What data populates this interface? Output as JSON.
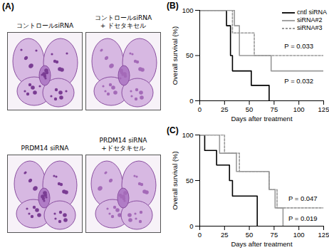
{
  "panel_a": {
    "label": "(A)",
    "images": [
      {
        "caption": [
          "コントロールsiRNA"
        ]
      },
      {
        "caption": [
          "コントロールsiRNA",
          "+ ドセタキセル"
        ]
      },
      {
        "caption": [
          "PRDM14 siRNA"
        ]
      },
      {
        "caption": [
          "PRDM14 siRNA",
          "+ドセタキセル"
        ]
      }
    ]
  },
  "chart_data": [
    {
      "type": "line",
      "panel": "(B)",
      "x_label": "Days after treatment",
      "y_label": "Overall survival (%)",
      "xlim": [
        0,
        125
      ],
      "ylim": [
        0,
        100
      ],
      "xticks": [
        0,
        25,
        50,
        75,
        100,
        125
      ],
      "yticks": [
        0,
        50,
        100
      ],
      "legend": "top-right",
      "series": [
        {
          "name": "cntl siRNA",
          "color": "#000000",
          "line_style": "solid",
          "x": [
            0,
            27,
            31,
            33,
            52,
            70
          ],
          "values": [
            100,
            83,
            50,
            33,
            17,
            0
          ]
        },
        {
          "name": "siRNA#2",
          "color": "#999999",
          "line_style": "solid",
          "x": [
            0,
            35,
            40,
            72,
            125
          ],
          "values": [
            100,
            83,
            50,
            33,
            33
          ]
        },
        {
          "name": "siRNA#3",
          "color": "#999999",
          "line_style": "dashed",
          "x": [
            0,
            33,
            55,
            125
          ],
          "values": [
            100,
            75,
            50,
            50
          ]
        }
      ],
      "annotations": [
        {
          "text": "P = 0.033",
          "x": 100,
          "y": 60
        },
        {
          "text": "P = 0.032",
          "x": 100,
          "y": 22
        }
      ]
    },
    {
      "type": "line",
      "panel": "(C)",
      "x_label": "Days after treatment",
      "y_label": "Overall survival (%)",
      "xlim": [
        0,
        125
      ],
      "ylim": [
        0,
        100
      ],
      "xticks": [
        0,
        25,
        50,
        75,
        100,
        125
      ],
      "yticks": [
        0,
        50,
        100
      ],
      "series": [
        {
          "name": "cntl siRNA",
          "color": "#000000",
          "line_style": "solid",
          "x": [
            0,
            5,
            17,
            30,
            33,
            58
          ],
          "values": [
            100,
            83,
            67,
            50,
            33,
            0
          ]
        },
        {
          "name": "siRNA#2",
          "color": "#999999",
          "line_style": "solid",
          "x": [
            0,
            20,
            37,
            70,
            76,
            84
          ],
          "values": [
            100,
            80,
            60,
            40,
            20,
            0
          ]
        },
        {
          "name": "siRNA#3",
          "color": "#999999",
          "line_style": "dashed",
          "x": [
            0,
            25,
            40,
            70,
            78,
            125
          ],
          "values": [
            100,
            80,
            60,
            40,
            20,
            20
          ]
        }
      ],
      "annotations": [
        {
          "text": "P = 0.047",
          "x": 104,
          "y": 30
        },
        {
          "text": "P = 0.019",
          "x": 104,
          "y": 8
        }
      ]
    }
  ]
}
